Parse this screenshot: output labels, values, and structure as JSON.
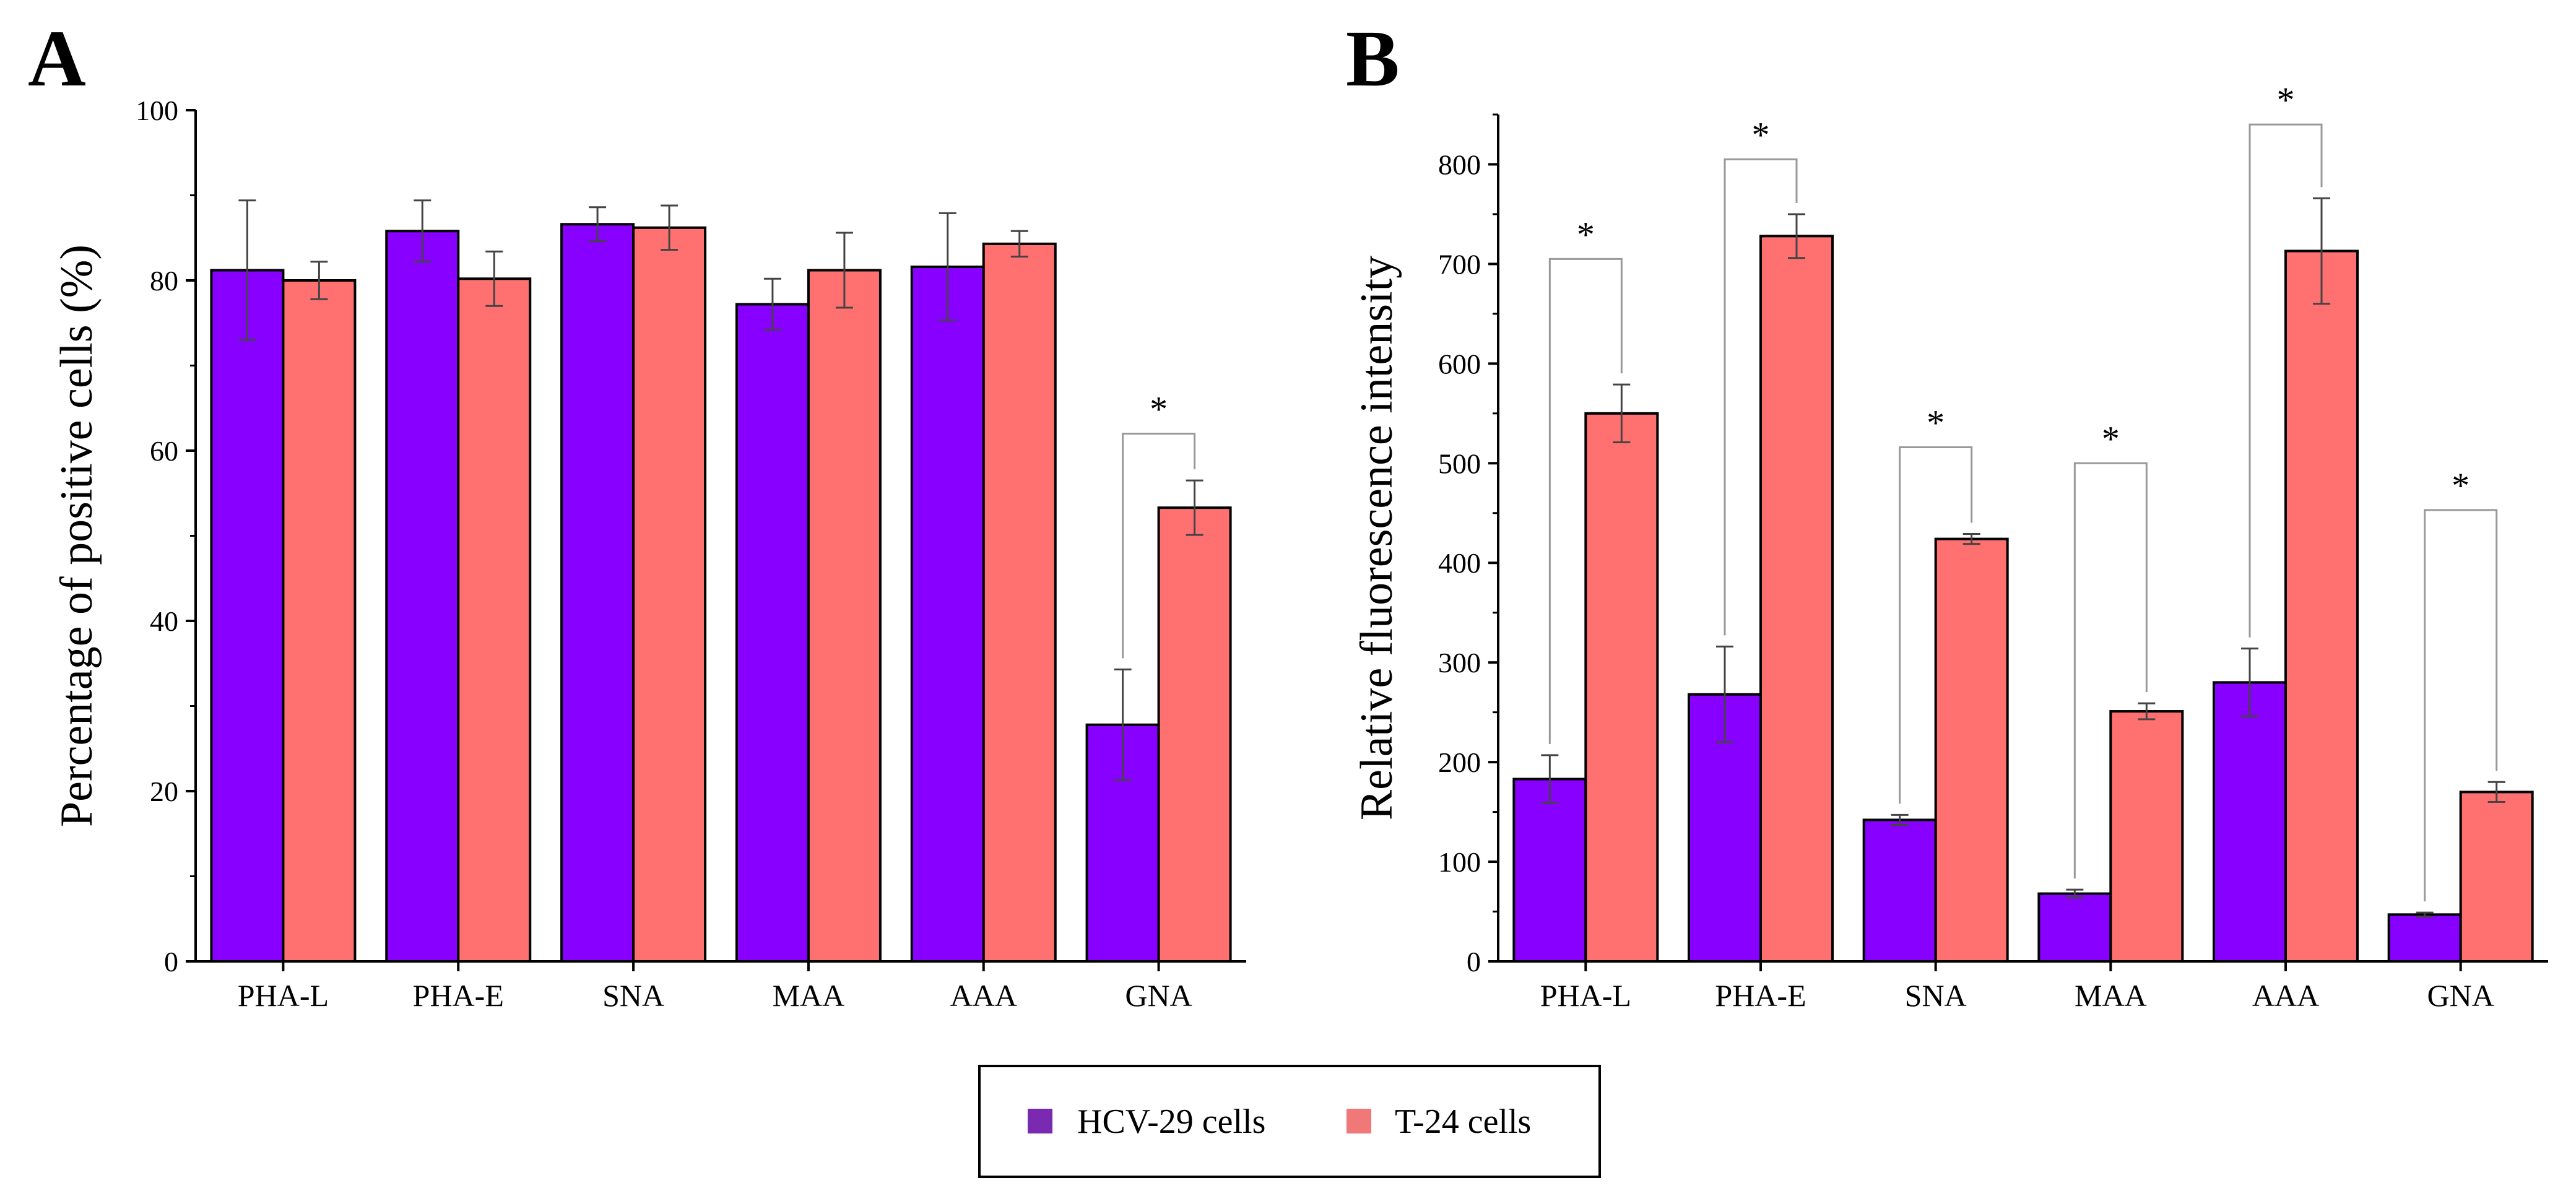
{
  "legend": {
    "items": [
      {
        "label": "HCV-29 cells",
        "color": "#8800ff",
        "swatch": "#7a2ab0"
      },
      {
        "label": "T-24 cells",
        "color": "#ff7070",
        "swatch": "#f07878"
      }
    ]
  },
  "chart_data": [
    {
      "panel": "A",
      "type": "bar",
      "ylabel": "Percentage of positive cells (%)",
      "xlabel": "",
      "ylim": [
        0,
        100
      ],
      "yticks": [
        0,
        20,
        40,
        60,
        80,
        100
      ],
      "categories": [
        "PHA-L",
        "PHA-E",
        "SNA",
        "MAA",
        "AAA",
        "GNA"
      ],
      "series": [
        {
          "name": "HCV-29 cells",
          "color": "#8800ff",
          "values": [
            81.2,
            85.8,
            86.6,
            77.2,
            81.6,
            27.8
          ],
          "errors": [
            8.2,
            3.6,
            2.0,
            3.0,
            6.3,
            6.5
          ]
        },
        {
          "name": "T-24 cells",
          "color": "#ff7070",
          "values": [
            80.0,
            80.2,
            86.2,
            81.2,
            84.3,
            53.3
          ],
          "errors": [
            2.2,
            3.2,
            2.6,
            4.4,
            1.5,
            3.2
          ]
        }
      ],
      "significance": [
        {
          "category": "GNA",
          "label": "*",
          "level": 62
        }
      ]
    },
    {
      "panel": "B",
      "type": "bar",
      "ylabel": "Relative fluorescence intensity",
      "xlabel": "",
      "ylim": [
        0,
        850
      ],
      "yticks": [
        0,
        100,
        200,
        300,
        400,
        500,
        600,
        700,
        800
      ],
      "categories": [
        "PHA-L",
        "PHA-E",
        "SNA",
        "MAA",
        "AAA",
        "GNA"
      ],
      "series": [
        {
          "name": "HCV-29 cells",
          "color": "#8800ff",
          "values": [
            183,
            268,
            142,
            68,
            280,
            47
          ],
          "errors": [
            24,
            48,
            5,
            4,
            34,
            2
          ]
        },
        {
          "name": "T-24 cells",
          "color": "#ff7070",
          "values": [
            550,
            728,
            424,
            251,
            713,
            170
          ],
          "errors": [
            29,
            22,
            5,
            8,
            53,
            10
          ]
        }
      ],
      "significance": [
        {
          "category": "PHA-L",
          "label": "*",
          "level": 705
        },
        {
          "category": "PHA-E",
          "label": "*",
          "level": 805
        },
        {
          "category": "SNA",
          "label": "*",
          "level": 516
        },
        {
          "category": "MAA",
          "label": "*",
          "level": 500
        },
        {
          "category": "AAA",
          "label": "*",
          "level": 840
        },
        {
          "category": "GNA",
          "label": "*",
          "level": 453
        }
      ]
    }
  ]
}
